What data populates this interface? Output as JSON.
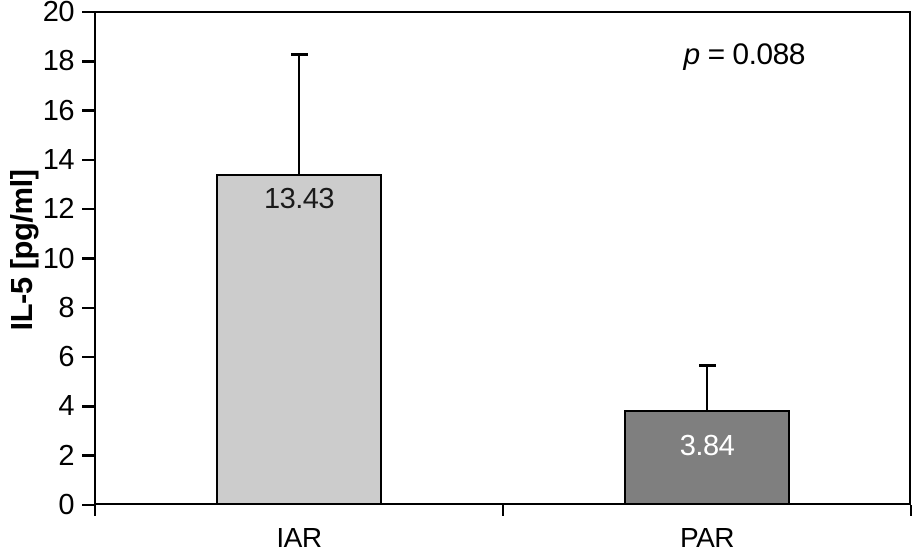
{
  "chart_data": {
    "type": "bar",
    "title": "",
    "ylabel": "IL-5 [pg/ml]",
    "xlabel": "",
    "ylim": [
      0,
      20
    ],
    "yticks": [
      0,
      2,
      4,
      6,
      8,
      10,
      12,
      14,
      16,
      18,
      20
    ],
    "grid": false,
    "legend": false,
    "categories": [
      "IAR",
      "PAR"
    ],
    "series": [
      {
        "name": "IL-5",
        "values": [
          13.43,
          3.84
        ],
        "value_labels": [
          "13.43",
          "3.84"
        ],
        "errors_upper": [
          4.87,
          1.84
        ]
      }
    ],
    "bar_fill_colors": [
      "#cccccc",
      "#7f7f7f"
    ],
    "bar_label_colors": [
      "#1a1a1a",
      "#ffffff"
    ],
    "axis_color": "#000000",
    "background_color": "#ffffff",
    "annotation": {
      "p_symbol": "p",
      "p_text": "= 0.088"
    }
  }
}
